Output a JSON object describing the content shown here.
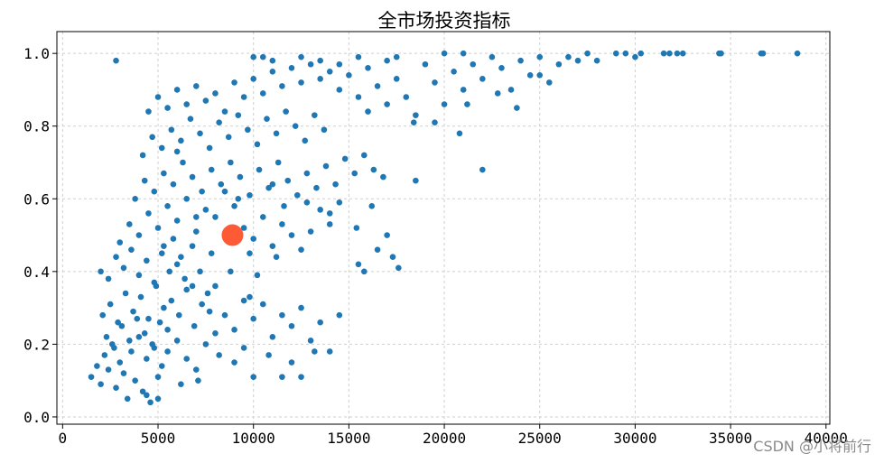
{
  "chart_data": {
    "type": "scatter",
    "title": "全市场投资指标",
    "xlabel": "",
    "ylabel": "",
    "xlim": [
      -300,
      40200
    ],
    "ylim": [
      -0.02,
      1.06
    ],
    "xticks": [
      0,
      5000,
      10000,
      15000,
      20000,
      25000,
      30000,
      35000,
      40000
    ],
    "xtick_labels": [
      "0",
      "5000",
      "10000",
      "15000",
      "20000",
      "25000",
      "30000",
      "35000",
      "40000"
    ],
    "yticks": [
      0.0,
      0.2,
      0.4,
      0.6,
      0.8,
      1.0
    ],
    "ytick_labels": [
      "0.0",
      "0.2",
      "0.4",
      "0.6",
      "0.8",
      "1.0"
    ],
    "grid": true,
    "series": [
      {
        "color": "#1f77b4",
        "points": [
          [
            1500,
            0.11
          ],
          [
            1800,
            0.14
          ],
          [
            2000,
            0.09
          ],
          [
            2200,
            0.17
          ],
          [
            2400,
            0.13
          ],
          [
            2600,
            0.2
          ],
          [
            2800,
            0.08
          ],
          [
            3000,
            0.15
          ],
          [
            3200,
            0.12
          ],
          [
            3400,
            0.05
          ],
          [
            3600,
            0.18
          ],
          [
            3800,
            0.1
          ],
          [
            4000,
            0.22
          ],
          [
            4200,
            0.07
          ],
          [
            4400,
            0.16
          ],
          [
            4600,
            0.04
          ],
          [
            4800,
            0.19
          ],
          [
            5000,
            0.11
          ],
          [
            5200,
            0.14
          ],
          [
            5500,
            0.24
          ],
          [
            2100,
            0.28
          ],
          [
            2500,
            0.31
          ],
          [
            2900,
            0.26
          ],
          [
            3300,
            0.34
          ],
          [
            3700,
            0.29
          ],
          [
            4100,
            0.33
          ],
          [
            4500,
            0.27
          ],
          [
            4900,
            0.36
          ],
          [
            5300,
            0.3
          ],
          [
            5700,
            0.32
          ],
          [
            6100,
            0.28
          ],
          [
            6500,
            0.35
          ],
          [
            6900,
            0.25
          ],
          [
            7300,
            0.31
          ],
          [
            7700,
            0.29
          ],
          [
            2000,
            0.4
          ],
          [
            2400,
            0.38
          ],
          [
            2800,
            0.44
          ],
          [
            3200,
            0.41
          ],
          [
            3600,
            0.46
          ],
          [
            4000,
            0.39
          ],
          [
            4400,
            0.43
          ],
          [
            4800,
            0.37
          ],
          [
            5200,
            0.45
          ],
          [
            5600,
            0.4
          ],
          [
            6000,
            0.42
          ],
          [
            6400,
            0.38
          ],
          [
            6800,
            0.36
          ],
          [
            7200,
            0.4
          ],
          [
            7600,
            0.34
          ],
          [
            2300,
            0.22
          ],
          [
            2700,
            0.19
          ],
          [
            3100,
            0.25
          ],
          [
            3500,
            0.21
          ],
          [
            3900,
            0.27
          ],
          [
            4300,
            0.23
          ],
          [
            4700,
            0.2
          ],
          [
            5100,
            0.26
          ],
          [
            5500,
            0.18
          ],
          [
            6000,
            0.21
          ],
          [
            6500,
            0.16
          ],
          [
            7000,
            0.13
          ],
          [
            7500,
            0.2
          ],
          [
            8000,
            0.23
          ],
          [
            8500,
            0.28
          ],
          [
            9000,
            0.24
          ],
          [
            9500,
            0.32
          ],
          [
            10000,
            0.27
          ],
          [
            10500,
            0.31
          ],
          [
            11000,
            0.22
          ],
          [
            11500,
            0.28
          ],
          [
            12000,
            0.25
          ],
          [
            12500,
            0.3
          ],
          [
            13000,
            0.21
          ],
          [
            13500,
            0.26
          ],
          [
            14000,
            0.18
          ],
          [
            14500,
            0.28
          ],
          [
            9000,
            0.15
          ],
          [
            10000,
            0.11
          ],
          [
            11500,
            0.11
          ],
          [
            12500,
            0.11
          ],
          [
            12000,
            0.15
          ],
          [
            8200,
            0.17
          ],
          [
            9500,
            0.19
          ],
          [
            10800,
            0.17
          ],
          [
            13200,
            0.18
          ],
          [
            7100,
            0.1
          ],
          [
            6200,
            0.09
          ],
          [
            5000,
            0.05
          ],
          [
            4400,
            0.06
          ],
          [
            3000,
            0.48
          ],
          [
            3500,
            0.53
          ],
          [
            4000,
            0.5
          ],
          [
            4500,
            0.56
          ],
          [
            5000,
            0.52
          ],
          [
            5500,
            0.58
          ],
          [
            6000,
            0.54
          ],
          [
            6500,
            0.6
          ],
          [
            7000,
            0.51
          ],
          [
            7500,
            0.57
          ],
          [
            8000,
            0.55
          ],
          [
            8500,
            0.62
          ],
          [
            9000,
            0.58
          ],
          [
            9500,
            0.52
          ],
          [
            10000,
            0.49
          ],
          [
            10500,
            0.55
          ],
          [
            11000,
            0.47
          ],
          [
            11500,
            0.53
          ],
          [
            12000,
            0.5
          ],
          [
            12500,
            0.46
          ],
          [
            13000,
            0.51
          ],
          [
            13500,
            0.57
          ],
          [
            14000,
            0.53
          ],
          [
            14500,
            0.59
          ],
          [
            15500,
            0.42
          ],
          [
            15800,
            0.4
          ],
          [
            16500,
            0.46
          ],
          [
            17000,
            0.5
          ],
          [
            17300,
            0.44
          ],
          [
            17600,
            0.41
          ],
          [
            16200,
            0.58
          ],
          [
            15400,
            0.52
          ],
          [
            9800,
            0.45
          ],
          [
            11200,
            0.44
          ],
          [
            8800,
            0.4
          ],
          [
            7800,
            0.45
          ],
          [
            6800,
            0.47
          ],
          [
            6200,
            0.44
          ],
          [
            5800,
            0.49
          ],
          [
            5300,
            0.47
          ],
          [
            3800,
            0.6
          ],
          [
            4300,
            0.65
          ],
          [
            4800,
            0.62
          ],
          [
            5300,
            0.67
          ],
          [
            5800,
            0.64
          ],
          [
            6300,
            0.7
          ],
          [
            6800,
            0.66
          ],
          [
            7300,
            0.62
          ],
          [
            7800,
            0.68
          ],
          [
            8300,
            0.64
          ],
          [
            8800,
            0.7
          ],
          [
            9300,
            0.66
          ],
          [
            9800,
            0.61
          ],
          [
            10300,
            0.68
          ],
          [
            10800,
            0.63
          ],
          [
            11300,
            0.7
          ],
          [
            11800,
            0.65
          ],
          [
            12300,
            0.61
          ],
          [
            12800,
            0.67
          ],
          [
            13300,
            0.63
          ],
          [
            13800,
            0.69
          ],
          [
            14300,
            0.64
          ],
          [
            14800,
            0.71
          ],
          [
            15300,
            0.67
          ],
          [
            15800,
            0.72
          ],
          [
            16300,
            0.68
          ],
          [
            16800,
            0.66
          ],
          [
            18500,
            0.65
          ],
          [
            22000,
            0.68
          ],
          [
            11600,
            0.58
          ],
          [
            4200,
            0.72
          ],
          [
            4700,
            0.77
          ],
          [
            5200,
            0.74
          ],
          [
            5700,
            0.79
          ],
          [
            6200,
            0.76
          ],
          [
            6700,
            0.82
          ],
          [
            7200,
            0.78
          ],
          [
            7700,
            0.74
          ],
          [
            8200,
            0.81
          ],
          [
            8700,
            0.77
          ],
          [
            9200,
            0.83
          ],
          [
            9700,
            0.79
          ],
          [
            10200,
            0.75
          ],
          [
            10700,
            0.82
          ],
          [
            11200,
            0.78
          ],
          [
            11700,
            0.84
          ],
          [
            12200,
            0.8
          ],
          [
            12700,
            0.76
          ],
          [
            13200,
            0.83
          ],
          [
            13700,
            0.79
          ],
          [
            4500,
            0.84
          ],
          [
            5000,
            0.88
          ],
          [
            5500,
            0.85
          ],
          [
            6000,
            0.9
          ],
          [
            6500,
            0.86
          ],
          [
            7000,
            0.91
          ],
          [
            7500,
            0.87
          ],
          [
            8000,
            0.89
          ],
          [
            8500,
            0.84
          ],
          [
            9000,
            0.92
          ],
          [
            9500,
            0.88
          ],
          [
            10000,
            0.93
          ],
          [
            10500,
            0.89
          ],
          [
            11000,
            0.95
          ],
          [
            11500,
            0.91
          ],
          [
            12000,
            0.96
          ],
          [
            12500,
            0.92
          ],
          [
            13000,
            0.97
          ],
          [
            13500,
            0.93
          ],
          [
            14000,
            0.95
          ],
          [
            14500,
            0.9
          ],
          [
            15000,
            0.94
          ],
          [
            15500,
            0.88
          ],
          [
            16000,
            0.96
          ],
          [
            16500,
            0.91
          ],
          [
            17000,
            0.98
          ],
          [
            17500,
            0.93
          ],
          [
            18000,
            0.88
          ],
          [
            18500,
            0.83
          ],
          [
            19000,
            0.97
          ],
          [
            19500,
            0.92
          ],
          [
            20000,
            0.86
          ],
          [
            20500,
            0.95
          ],
          [
            21000,
            0.9
          ],
          [
            21500,
            0.97
          ],
          [
            22000,
            0.93
          ],
          [
            22500,
            0.99
          ],
          [
            23000,
            0.96
          ],
          [
            23500,
            0.9
          ],
          [
            24000,
            0.98
          ],
          [
            24500,
            0.94
          ],
          [
            25000,
            0.99
          ],
          [
            25500,
            0.92
          ],
          [
            26000,
            0.97
          ],
          [
            26500,
            0.99
          ],
          [
            27000,
            0.98
          ],
          [
            27500,
            1.0
          ],
          [
            28000,
            0.98
          ],
          [
            29000,
            1.0
          ],
          [
            29500,
            1.0
          ],
          [
            30000,
            0.99
          ],
          [
            30300,
            1.0
          ],
          [
            31500,
            1.0
          ],
          [
            31800,
            1.0
          ],
          [
            32200,
            1.0
          ],
          [
            32500,
            1.0
          ],
          [
            34400,
            1.0
          ],
          [
            34500,
            1.0
          ],
          [
            36600,
            1.0
          ],
          [
            36700,
            1.0
          ],
          [
            38500,
            1.0
          ],
          [
            20800,
            0.78
          ],
          [
            19500,
            0.81
          ],
          [
            21200,
            0.86
          ],
          [
            23800,
            0.85
          ],
          [
            22800,
            0.89
          ],
          [
            25000,
            0.94
          ],
          [
            18400,
            0.81
          ],
          [
            17000,
            0.86
          ],
          [
            16000,
            0.84
          ],
          [
            10000,
            0.99
          ],
          [
            10500,
            0.99
          ],
          [
            11000,
            0.98
          ],
          [
            12500,
            0.99
          ],
          [
            13500,
            0.98
          ],
          [
            14500,
            0.97
          ],
          [
            15500,
            0.99
          ],
          [
            17500,
            0.99
          ],
          [
            20000,
            1.0
          ],
          [
            21000,
            1.0
          ],
          [
            2800,
            0.98
          ],
          [
            6000,
            0.73
          ],
          [
            7000,
            0.55
          ],
          [
            9200,
            0.6
          ],
          [
            11000,
            0.64
          ],
          [
            12800,
            0.59
          ],
          [
            14000,
            0.56
          ],
          [
            10200,
            0.39
          ],
          [
            9800,
            0.33
          ],
          [
            8000,
            0.36
          ]
        ]
      },
      {
        "color": "#ff5a36",
        "points": [
          [
            8900,
            0.5
          ]
        ],
        "marker_size": "large"
      }
    ]
  },
  "watermark": "CSDN @小将前行"
}
